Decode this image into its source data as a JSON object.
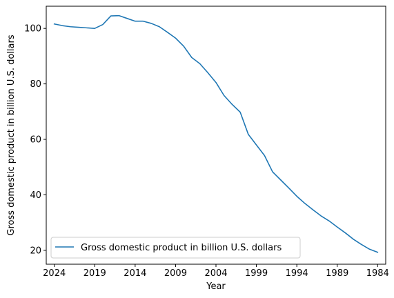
{
  "chart_data": {
    "type": "line",
    "title": "",
    "xlabel": "Year",
    "ylabel": "Gross domestic product in billion U.S. dollars",
    "x_reversed": true,
    "xlim": [
      2025.0,
      1983.0
    ],
    "ylim": [
      15,
      108
    ],
    "xticks": [
      2024,
      2019,
      2014,
      2009,
      2004,
      1999,
      1994,
      1989,
      1984
    ],
    "xtick_labels": [
      "2024",
      "2019",
      "2014",
      "2009",
      "2004",
      "1999",
      "1994",
      "1989",
      "1984"
    ],
    "yticks": [
      20,
      40,
      60,
      80,
      100
    ],
    "ytick_labels": [
      "20",
      "40",
      "60",
      "80",
      "100"
    ],
    "grid": false,
    "legend_position": "lower left",
    "color": "#1f77b4",
    "series": [
      {
        "name": "Gross domestic product in billion U.S. dollars",
        "x": [
          2024,
          2023,
          2022,
          2021,
          2020,
          2019,
          2018,
          2017,
          2016,
          2015,
          2014,
          2013,
          2012,
          2011,
          2010,
          2009,
          2008,
          2007,
          2006,
          2005,
          2004,
          2003,
          2002,
          2001,
          2000,
          1999,
          1998,
          1997,
          1996,
          1995,
          1994,
          1993,
          1992,
          1991,
          1990,
          1989,
          1988,
          1987,
          1986,
          1985,
          1984
        ],
        "values": [
          101.6,
          101.0,
          100.6,
          100.4,
          100.2,
          100.0,
          101.4,
          104.5,
          104.6,
          103.6,
          102.6,
          102.6,
          101.8,
          100.6,
          98.6,
          96.5,
          93.6,
          89.5,
          87.3,
          84.0,
          80.5,
          75.8,
          72.6,
          69.8,
          61.8,
          58.0,
          54.2,
          48.3,
          45.4,
          42.5,
          39.5,
          36.9,
          34.6,
          32.4,
          30.6,
          28.4,
          26.3,
          24.0,
          22.1,
          20.4,
          19.3
        ]
      }
    ]
  }
}
